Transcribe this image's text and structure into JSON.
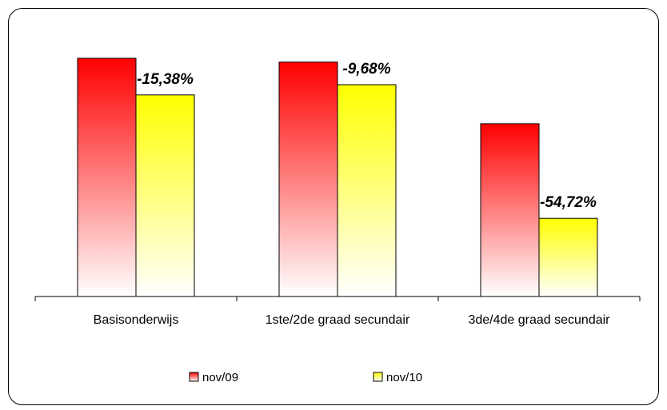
{
  "chart_data": {
    "type": "bar",
    "categories": [
      "Basisonderwijs",
      "1ste/2de graad secundair",
      "3de/4de graad secundair"
    ],
    "series": [
      {
        "name": "nov/09",
        "values": [
          100,
          98.4,
          72.5
        ]
      },
      {
        "name": "nov/10",
        "values": [
          84.6,
          88.9,
          32.8
        ]
      }
    ],
    "annotations": [
      "-15,38%",
      "-9,68%",
      "-54,72%"
    ],
    "ylim": [
      0,
      106
    ],
    "grid": false,
    "legend": "bottom",
    "colors": {
      "nov/09": "#ff0000",
      "nov/10": "#ffff00"
    }
  }
}
